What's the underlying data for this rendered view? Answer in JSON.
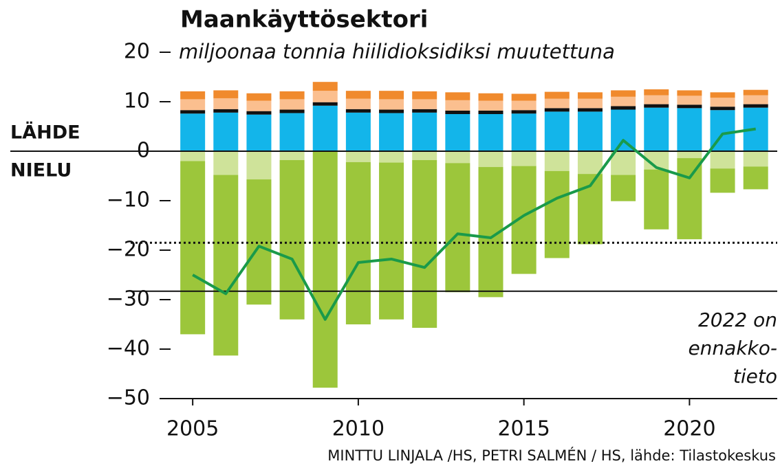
{
  "chart_data": {
    "type": "bar",
    "title": "Maankäyttösektori",
    "subtitle": "miljoonaa tonnia hiilidioksidiksi muutettuna",
    "labels": [
      "LÄHDE",
      "NIELU"
    ],
    "annotation": [
      "2022 on",
      "ennakko-",
      "tieto"
    ],
    "source": "MINTTU LINJALA /HS, PETRI SALMÉN / HS, lähde: Tilastokeskus",
    "x": [
      2005,
      2006,
      2007,
      2008,
      2009,
      2010,
      2011,
      2012,
      2013,
      2014,
      2015,
      2016,
      2017,
      2018,
      2019,
      2020,
      2021,
      2022
    ],
    "series": [
      {
        "color": "#13b5ea",
        "values": [
          7.6,
          7.8,
          7.4,
          7.7,
          9.2,
          7.8,
          7.7,
          7.8,
          7.5,
          7.5,
          7.6,
          8.0,
          8.0,
          8.4,
          8.8,
          8.7,
          8.3,
          8.8
        ]
      },
      {
        "color": "#111111",
        "values": [
          0.7,
          0.7,
          0.7,
          0.7,
          0.7,
          0.7,
          0.7,
          0.7,
          0.7,
          0.7,
          0.7,
          0.7,
          0.7,
          0.7,
          0.7,
          0.7,
          0.7,
          0.7
        ]
      },
      {
        "color": "#fbbf8f",
        "values": [
          2.2,
          2.2,
          2.1,
          2.1,
          2.3,
          2.1,
          2.1,
          2.0,
          2.1,
          2.0,
          1.9,
          1.9,
          1.9,
          1.9,
          1.8,
          1.8,
          1.8,
          1.8
        ]
      },
      {
        "color": "#f08a2d",
        "values": [
          1.6,
          1.6,
          1.5,
          1.6,
          1.8,
          1.6,
          1.7,
          1.6,
          1.6,
          1.5,
          1.4,
          1.4,
          1.3,
          1.3,
          1.2,
          1.1,
          1.1,
          1.1
        ]
      },
      {
        "color": "#cfe39a",
        "values": [
          -2.0,
          -4.8,
          -5.7,
          -1.8,
          0,
          -2.2,
          -2.3,
          -1.8,
          -2.4,
          -3.2,
          -3.0,
          -4.0,
          -4.6,
          -4.8,
          -3.7,
          -1.4,
          -3.5,
          -3.1
        ]
      },
      {
        "color": "#9cc63b",
        "values": [
          -35.0,
          -36.5,
          -25.3,
          -32.2,
          -47.8,
          -32.8,
          -31.7,
          -33.9,
          -26.1,
          -26.3,
          -21.8,
          -17.6,
          -14.2,
          -5.3,
          -12.1,
          -16.4,
          -4.9,
          -4.6
        ]
      }
    ],
    "net": {
      "color": "#1a9a4a",
      "values": [
        -25.0,
        -28.8,
        -19.2,
        -21.8,
        -34.0,
        -22.5,
        -21.8,
        -23.5,
        -16.7,
        -17.5,
        -13.0,
        -9.5,
        -7.0,
        2.2,
        -3.3,
        -5.4,
        3.5,
        4.5
      ]
    },
    "reference_lines": [
      {
        "value": -18.5,
        "style": "dotted"
      },
      {
        "value": -28.3,
        "style": "solid"
      }
    ],
    "xlim": [
      2004,
      2022.65
    ],
    "xticks": [
      2005,
      2010,
      2015,
      2020
    ],
    "ylim": [
      -50,
      20
    ],
    "yticks": [
      20,
      10,
      0,
      {
        "value": -10,
        "label": "−10"
      },
      {
        "value": -20,
        "label": "−20"
      },
      {
        "value": -30,
        "label": "−30"
      },
      {
        "value": -40,
        "label": "−40"
      },
      {
        "value": -50,
        "label": "−50"
      }
    ]
  }
}
